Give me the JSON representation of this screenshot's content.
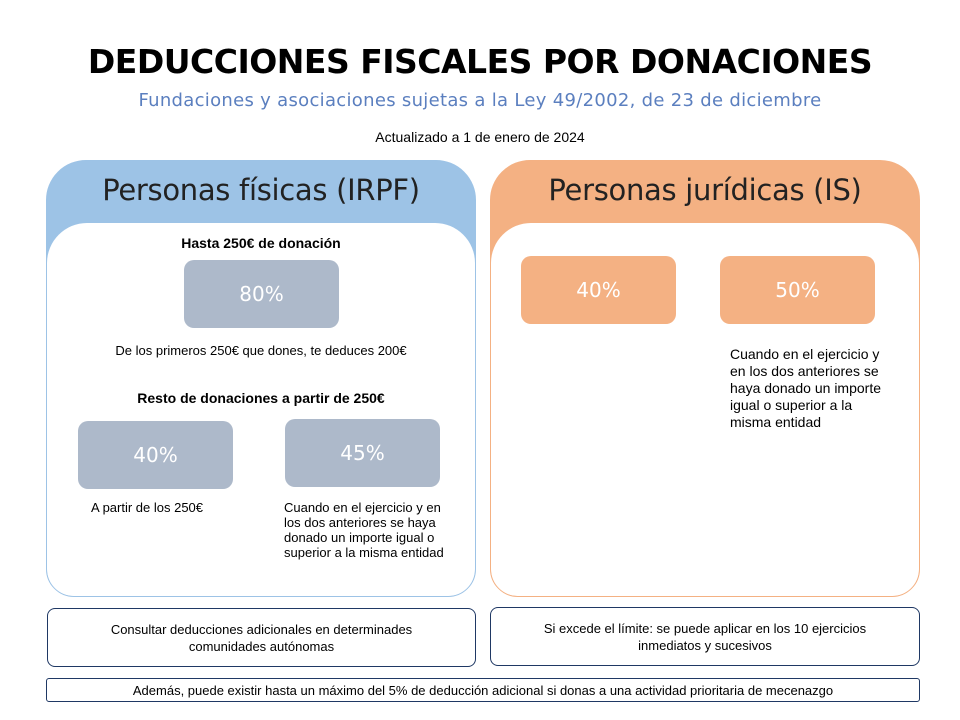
{
  "header": {
    "title": "DEDUCCIONES FISCALES POR DONACIONES",
    "subtitle": "Fundaciones y asociaciones sujetas a la Ley 49/2002, de 23 de diciembre",
    "updated": "Actualizado a 1 de enero de 2024"
  },
  "irpf": {
    "title": "Personas físicas (IRPF)",
    "section1_label": "Hasta 250€ de donación",
    "section1_pct": "80%",
    "section1_note": "De los primeros 250€ que dones, te deduces 200€",
    "section2_label": "Resto de donaciones a partir de 250€",
    "option_a_pct": "40%",
    "option_a_note": "A partir  de los 250€",
    "option_b_pct": "45%",
    "option_b_note": "Cuando en el ejercicio y en los dos anteriores se haya donado un importe igual o superior a la misma entidad"
  },
  "is": {
    "title": "Personas jurídicas (IS)",
    "option_a_pct": "40%",
    "option_b_pct": "50%",
    "option_b_note": "Cuando en el ejercicio y en los dos anteriores se haya donado un importe igual o superior a la misma entidad"
  },
  "footer": {
    "left_box": "Consultar deducciones adicionales en determinades comunidades autónomas",
    "right_box": "Si excede el límite: se puede aplicar en los 10 ejercicios inmediatos y sucesivos",
    "bottom_box": "Además, puede existir hasta un máximo del 5% de deducción adicional si donas a una actividad prioritaria de mecenazgo"
  },
  "colors": {
    "irpf_header": "#9dc3e6",
    "is_header": "#f4b183",
    "grey_badge": "#adb9ca",
    "orange_badge": "#f4b183",
    "subtitle_text": "#5b7fbf",
    "box_border": "#1f3864"
  }
}
